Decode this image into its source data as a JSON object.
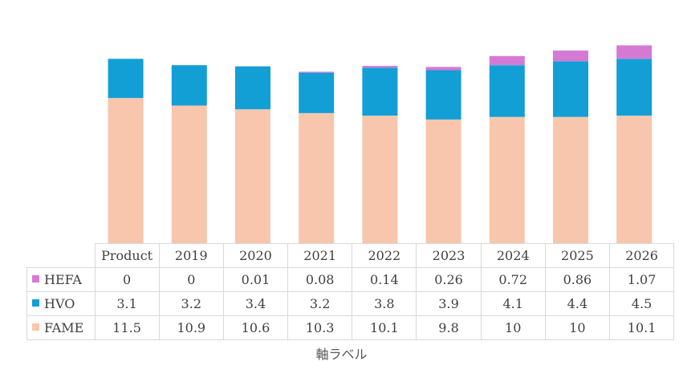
{
  "chart_data": {
    "type": "bar",
    "stacked": true,
    "categories": [
      "Product",
      "2019",
      "2020",
      "2021",
      "2022",
      "2023",
      "2024",
      "2025",
      "2026"
    ],
    "series": [
      {
        "name": "HEFA",
        "color": "#d57ad4",
        "values": [
          0,
          0,
          0.01,
          0.08,
          0.14,
          0.26,
          0.72,
          0.86,
          1.07
        ],
        "labels": [
          "0",
          "0",
          "0.01",
          "0.08",
          "0.14",
          "0.26",
          "0.72",
          "0.86",
          "1.07"
        ]
      },
      {
        "name": "HVO",
        "color": "#129fd6",
        "values": [
          3.1,
          3.2,
          3.4,
          3.2,
          3.8,
          3.9,
          4.1,
          4.4,
          4.5
        ],
        "labels": [
          "3.1",
          "3.2",
          "3.4",
          "3.2",
          "3.8",
          "3.9",
          "4.1",
          "4.4",
          "4.5"
        ]
      },
      {
        "name": "FAME",
        "color": "#f7c6ad",
        "values": [
          11.5,
          10.9,
          10.6,
          10.3,
          10.1,
          9.8,
          10,
          10,
          10.1
        ],
        "labels": [
          "11.5",
          "10.9",
          "10.6",
          "10.3",
          "10.1",
          "9.8",
          "10",
          "10",
          "10.1"
        ]
      }
    ],
    "xlabel": "軸ラベル",
    "ylabel": "",
    "ylim": [
      0,
      15.7
    ],
    "legend": "data-table"
  }
}
